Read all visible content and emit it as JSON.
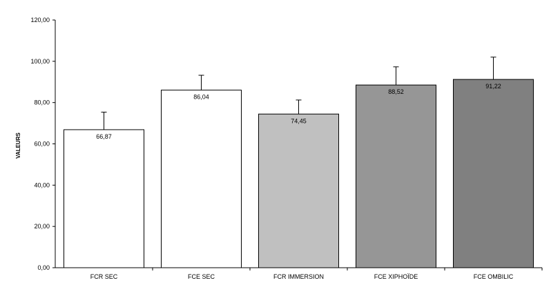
{
  "chart_data": {
    "type": "bar",
    "title": "",
    "xlabel": "",
    "ylabel": "VALEURS",
    "ylim": [
      0,
      120
    ],
    "y_ticks": [
      "0,00",
      "20,00",
      "40,00",
      "60,00",
      "80,00",
      "100,00",
      "120,00"
    ],
    "y_tick_values": [
      0,
      20,
      40,
      60,
      80,
      100,
      120
    ],
    "categories": [
      "FCR SEC",
      "FCE SEC",
      "FCR IMMERSION",
      "FCE XIPHOÏDE",
      "FCE OMBILIC"
    ],
    "values": [
      66.87,
      86.04,
      74.45,
      88.52,
      91.22
    ],
    "value_labels": [
      "66,87",
      "86,04",
      "74,45",
      "88,52",
      "91,22"
    ],
    "error_upper": [
      8.5,
      7.2,
      6.8,
      8.8,
      10.8
    ],
    "bar_colors": [
      "#ffffff",
      "#ffffff",
      "#c0c0c0",
      "#969696",
      "#808080"
    ],
    "grid": false,
    "legend": "none"
  }
}
